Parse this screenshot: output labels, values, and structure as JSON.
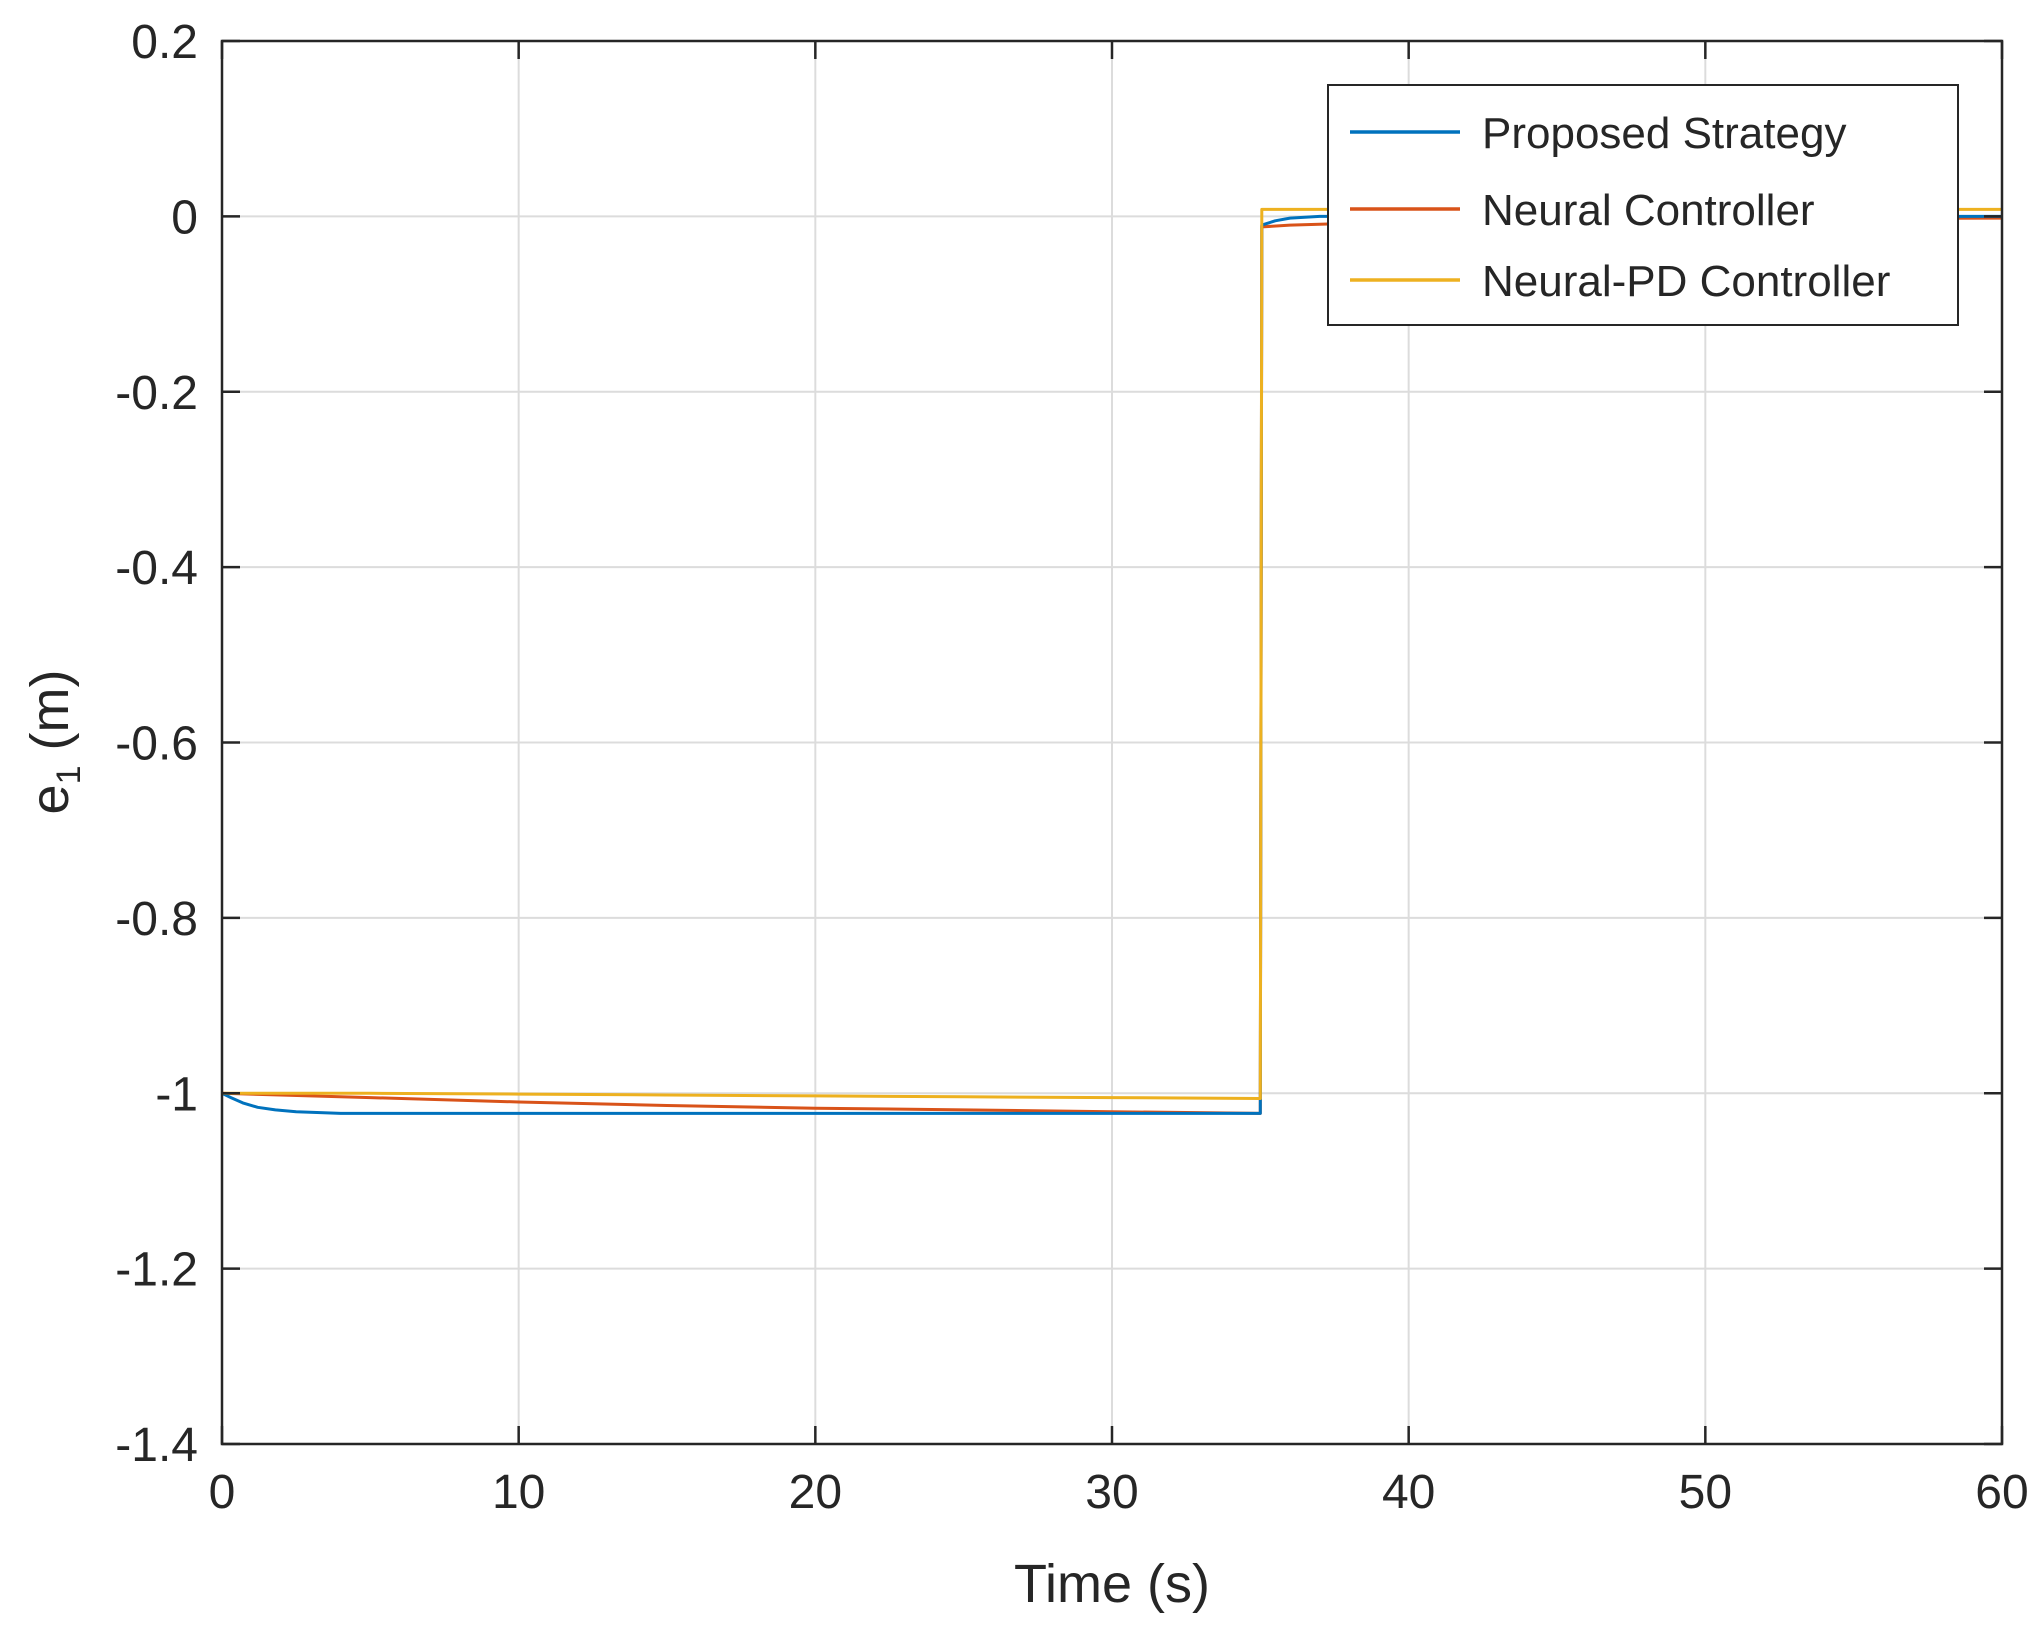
{
  "chart_data": {
    "type": "line",
    "title": "",
    "xlabel": "Time (s)",
    "ylabel": {
      "base": "e",
      "subscript": "1",
      "suffix": " (m)"
    },
    "xlim": [
      0,
      60
    ],
    "ylim": [
      -1.4,
      0.2
    ],
    "xticks": [
      0,
      10,
      20,
      30,
      40,
      50,
      60
    ],
    "yticks": [
      -1.4,
      -1.2,
      -1,
      -0.8,
      -0.6,
      -0.4,
      -0.2,
      0,
      0.2
    ],
    "xtick_labels": [
      "0",
      "10",
      "20",
      "30",
      "40",
      "50",
      "60"
    ],
    "ytick_labels": [
      "-1.4",
      "-1.2",
      "-1",
      "-0.8",
      "-0.6",
      "-0.4",
      "-0.2",
      "0",
      "0.2"
    ],
    "grid": true,
    "legend_position": "top-right",
    "series": [
      {
        "name": "Proposed Strategy",
        "color": "#0072BD",
        "x": [
          0,
          0.3,
          0.7,
          1.2,
          1.8,
          2.5,
          3.2,
          4,
          6,
          10,
          20,
          30,
          35,
          35.05,
          35.5,
          36,
          37,
          38,
          40,
          50,
          60
        ],
        "y": [
          -1.0,
          -1.005,
          -1.011,
          -1.016,
          -1.019,
          -1.021,
          -1.022,
          -1.023,
          -1.023,
          -1.023,
          -1.023,
          -1.023,
          -1.023,
          -0.01,
          -0.005,
          -0.002,
          0.0,
          0.0,
          0.0,
          0.0,
          0.0
        ]
      },
      {
        "name": "Neural Controller",
        "color": "#D95319",
        "x": [
          0,
          5,
          10,
          15,
          20,
          25,
          30,
          35,
          35.05,
          36,
          38,
          40,
          50,
          60
        ],
        "y": [
          -1.0,
          -1.005,
          -1.01,
          -1.014,
          -1.017,
          -1.019,
          -1.021,
          -1.023,
          -0.012,
          -0.01,
          -0.008,
          -0.006,
          -0.003,
          -0.002
        ]
      },
      {
        "name": "Neural-PD Controller",
        "color": "#EDB120",
        "x": [
          0,
          5,
          10,
          15,
          20,
          25,
          30,
          35,
          35.05,
          36,
          40,
          50,
          60
        ],
        "y": [
          -1.0,
          -1.0,
          -1.001,
          -1.002,
          -1.003,
          -1.004,
          -1.005,
          -1.006,
          0.008,
          0.008,
          0.008,
          0.008,
          0.008
        ]
      }
    ]
  }
}
